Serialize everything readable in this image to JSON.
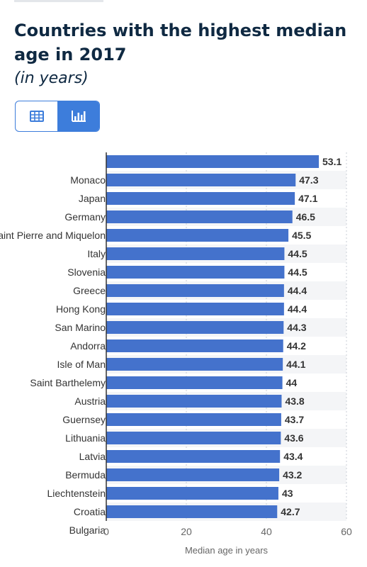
{
  "header": {
    "title": "Countries with the highest median age in 2017",
    "subtitle": "(in years)"
  },
  "view_toggle": {
    "table_icon": "table-icon",
    "chart_icon": "bar-chart-icon",
    "selected": "chart"
  },
  "colors": {
    "bar": "#4472cc",
    "stripe": "#f4f5f7",
    "accent": "#3d7ddb"
  },
  "chart_data": {
    "type": "bar",
    "orientation": "horizontal",
    "categories": [
      "Monaco",
      "Japan",
      "Germany",
      "Saint Pierre and Miquelon",
      "Italy",
      "Slovenia",
      "Greece",
      "Hong Kong",
      "San Marino",
      "Andorra",
      "Isle of Man",
      "Saint Barthelemy",
      "Austria",
      "Guernsey",
      "Lithuania",
      "Latvia",
      "Bermuda",
      "Liechtenstein",
      "Croatia",
      "Bulgaria"
    ],
    "values": [
      53.1,
      47.3,
      47.1,
      46.5,
      45.5,
      44.5,
      44.5,
      44.4,
      44.4,
      44.3,
      44.2,
      44.1,
      44,
      43.8,
      43.7,
      43.6,
      43.4,
      43.2,
      43,
      42.7
    ],
    "value_labels": [
      "53.1",
      "47.3",
      "47.1",
      "46.5",
      "45.5",
      "44.5",
      "44.5",
      "44.4",
      "44.4",
      "44.3",
      "44.2",
      "44.1",
      "44",
      "43.8",
      "43.7",
      "43.6",
      "43.4",
      "43.2",
      "43",
      "42.7"
    ],
    "xticks": [
      "0",
      "20",
      "40",
      "60"
    ],
    "xlim": [
      0,
      60
    ],
    "xlabel": "Median age in years",
    "grid": true
  }
}
